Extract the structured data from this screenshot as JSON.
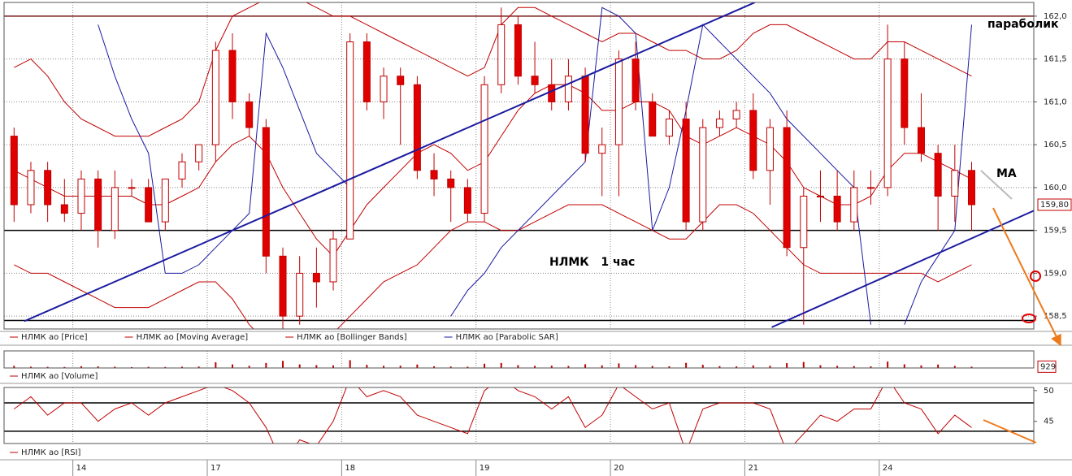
{
  "chart_data": [
    {
      "type": "candlestick",
      "name": "НЛМК ао [Price]",
      "color": "#c00000",
      "up_color": "#ffffff",
      "down_color": "#e00000",
      "categories": [
        null,
        null,
        null,
        null,
        "14",
        null,
        null,
        null,
        null,
        null,
        null,
        null,
        "17",
        null,
        null,
        null,
        null,
        null,
        null,
        null,
        "18",
        null,
        null,
        null,
        null,
        null,
        null,
        null,
        "19",
        null,
        null,
        null,
        null,
        null,
        null,
        null,
        "20",
        null,
        null,
        null,
        null,
        null,
        null,
        null,
        "21",
        null,
        null,
        null,
        null,
        null,
        null,
        null,
        "24",
        null,
        null,
        null,
        null,
        null
      ],
      "open": [
        160.6,
        159.8,
        160.2,
        159.8,
        159.7,
        160.1,
        159.5,
        160.0,
        160.0,
        159.6,
        160.1,
        160.3,
        160.5,
        161.6,
        161.0,
        160.7,
        159.2,
        158.5,
        159.0,
        158.9,
        159.4,
        161.7,
        161.0,
        161.3,
        161.2,
        160.2,
        160.1,
        160.0,
        159.7,
        161.2,
        161.9,
        161.3,
        161.2,
        161.0,
        161.3,
        160.4,
        160.5,
        161.5,
        161.0,
        160.6,
        160.8,
        159.6,
        160.7,
        160.8,
        160.9,
        160.2,
        160.7,
        159.3,
        159.9,
        159.9,
        159.6,
        160.0,
        160.0,
        161.5,
        160.7,
        160.4,
        159.9,
        160.2
      ],
      "high": [
        160.7,
        160.3,
        160.3,
        160.1,
        160.2,
        160.2,
        160.2,
        160.1,
        160.1,
        160.1,
        160.4,
        160.5,
        161.7,
        161.8,
        161.1,
        160.8,
        159.3,
        159.2,
        159.3,
        159.5,
        161.8,
        161.8,
        161.4,
        161.4,
        161.3,
        160.4,
        160.2,
        160.1,
        161.3,
        162.1,
        162.0,
        161.7,
        161.5,
        161.5,
        161.4,
        160.7,
        161.6,
        161.7,
        161.1,
        160.9,
        161.0,
        160.8,
        160.9,
        161.0,
        161.1,
        160.8,
        160.9,
        160.0,
        160.2,
        160.2,
        160.2,
        160.2,
        161.9,
        161.7,
        161.1,
        160.5,
        160.5,
        160.3
      ],
      "low": [
        159.6,
        159.7,
        159.6,
        159.6,
        159.5,
        159.3,
        159.4,
        159.9,
        159.6,
        159.5,
        160.0,
        160.2,
        160.3,
        160.8,
        160.6,
        159.0,
        158.3,
        158.4,
        158.6,
        158.8,
        159.4,
        160.9,
        160.8,
        160.5,
        160.1,
        159.9,
        159.6,
        159.6,
        159.6,
        161.1,
        161.2,
        161.1,
        160.9,
        160.9,
        160.3,
        159.9,
        159.9,
        160.9,
        160.6,
        160.5,
        159.5,
        159.5,
        160.6,
        160.7,
        160.1,
        159.8,
        159.2,
        158.4,
        159.6,
        159.5,
        159.5,
        159.8,
        159.9,
        160.5,
        160.3,
        159.5,
        159.6,
        159.5
      ],
      "close": [
        159.8,
        160.2,
        159.8,
        159.7,
        160.1,
        159.5,
        160.0,
        160.0,
        159.6,
        160.1,
        160.3,
        160.5,
        161.6,
        161.0,
        160.7,
        159.2,
        158.5,
        159.0,
        158.9,
        159.4,
        161.7,
        161.0,
        161.3,
        161.2,
        160.2,
        160.1,
        160.0,
        159.7,
        161.2,
        161.9,
        161.3,
        161.2,
        161.0,
        161.3,
        160.4,
        160.5,
        161.5,
        161.0,
        160.6,
        160.8,
        159.6,
        160.7,
        160.8,
        160.9,
        160.2,
        160.7,
        159.3,
        159.9,
        159.9,
        159.6,
        160.0,
        160.0,
        161.5,
        160.7,
        160.4,
        159.9,
        160.2,
        159.8
      ],
      "series": [
        {
          "name": "НЛМК ао [Moving Average]",
          "color": "#c00000",
          "values": [
            160.2,
            160.1,
            160.0,
            159.9,
            159.9,
            159.9,
            159.9,
            159.9,
            159.8,
            159.8,
            159.9,
            160.0,
            160.3,
            160.5,
            160.6,
            160.4,
            160.0,
            159.7,
            159.4,
            159.2,
            159.5,
            159.8,
            160.0,
            160.2,
            160.4,
            160.5,
            160.4,
            160.2,
            160.3,
            160.6,
            160.9,
            161.1,
            161.2,
            161.2,
            161.1,
            160.9,
            160.9,
            161.0,
            161.0,
            160.9,
            160.6,
            160.5,
            160.6,
            160.7,
            160.6,
            160.5,
            160.3,
            160.0,
            159.9,
            159.8,
            159.8,
            159.9,
            160.2,
            160.4,
            160.4,
            160.3,
            160.2,
            160.1
          ]
        },
        {
          "name": "НЛМК ао [Bollinger Bands]",
          "color": "#c00000",
          "upper": [
            161.4,
            161.5,
            161.3,
            161.0,
            160.8,
            160.7,
            160.6,
            160.6,
            160.6,
            160.7,
            160.8,
            161.0,
            161.6,
            162.0,
            162.1,
            162.2,
            162.3,
            162.2,
            162.1,
            162.0,
            162.0,
            161.9,
            161.8,
            161.7,
            161.6,
            161.5,
            161.4,
            161.3,
            161.4,
            161.9,
            162.1,
            162.1,
            162.0,
            161.9,
            161.8,
            161.7,
            161.8,
            161.8,
            161.7,
            161.6,
            161.6,
            161.5,
            161.5,
            161.6,
            161.8,
            161.9,
            161.9,
            161.8,
            161.7,
            161.6,
            161.5,
            161.5,
            161.7,
            161.7,
            161.6,
            161.5,
            161.4,
            161.3
          ],
          "lower": [
            159.1,
            159.0,
            159.0,
            158.9,
            158.8,
            158.7,
            158.6,
            158.6,
            158.6,
            158.7,
            158.8,
            158.9,
            158.9,
            158.7,
            158.4,
            158.2,
            158.0,
            158.0,
            158.1,
            158.3,
            158.5,
            158.7,
            158.9,
            159.0,
            159.1,
            159.3,
            159.5,
            159.6,
            159.6,
            159.5,
            159.5,
            159.6,
            159.7,
            159.8,
            159.8,
            159.8,
            159.7,
            159.6,
            159.5,
            159.4,
            159.4,
            159.6,
            159.8,
            159.8,
            159.7,
            159.5,
            159.3,
            159.1,
            159.0,
            159.0,
            159.0,
            159.0,
            159.0,
            159.0,
            159.0,
            158.9,
            159.0,
            159.1
          ]
        },
        {
          "name": "НЛМК ао [Parabolic SAR]",
          "color": "#1a1aa0",
          "values": [
            null,
            null,
            null,
            null,
            null,
            161.9,
            161.3,
            160.8,
            160.4,
            159.0,
            159.0,
            159.1,
            159.3,
            159.5,
            159.7,
            161.8,
            161.4,
            160.9,
            160.4,
            160.2,
            160.0,
            null,
            null,
            null,
            null,
            null,
            158.5,
            158.8,
            159.0,
            159.3,
            159.5,
            159.7,
            159.9,
            160.1,
            160.3,
            162.1,
            162.0,
            161.8,
            159.5,
            160.0,
            160.9,
            161.9,
            161.7,
            161.5,
            161.3,
            161.1,
            160.8,
            160.6,
            160.4,
            160.2,
            160.0,
            158.4,
            null,
            158.4,
            158.9,
            159.2,
            159.5,
            161.9
          ]
        }
      ],
      "ylim": [
        158.35,
        162.16
      ],
      "yticks": [
        {
          "value": 158.5,
          "label": "158,5"
        },
        {
          "value": 159.0,
          "label": "159,0"
        },
        {
          "value": 159.5,
          "label": "159,5"
        },
        {
          "value": 160.0,
          "label": "160,0"
        },
        {
          "value": 160.5,
          "label": "160,5"
        },
        {
          "value": 161.0,
          "label": "161,0"
        },
        {
          "value": 161.5,
          "label": "161,5"
        },
        {
          "value": 162.0,
          "label": "162,0"
        }
      ],
      "grid": true,
      "marker": {
        "value": 159.8,
        "label": "159,80"
      },
      "hlines": [
        {
          "value": 162.0,
          "color": "#7a1a1a"
        },
        {
          "value": 159.5,
          "color": "#000000"
        },
        {
          "value": 158.45,
          "color": "#000000"
        }
      ],
      "trend_lines": [
        {
          "color": "#1a1aa0",
          "x": [
            0.6,
            44.1
          ],
          "y": [
            158.44,
            162.16
          ]
        },
        {
          "color": "#1a1aa0",
          "x": [
            45.1,
            60.7
          ],
          "y": [
            158.37,
            159.73
          ]
        }
      ],
      "annotations": [
        "параболик",
        "МА",
        "НЛМК   1 час"
      ]
    },
    {
      "type": "bar",
      "name": "НЛМК ао [Volume]",
      "color": "#c00000",
      "values": [
        1500,
        900,
        800,
        700,
        1200,
        1100,
        900,
        600,
        800,
        700,
        900,
        1000,
        4000,
        2500,
        1500,
        3500,
        5000,
        2500,
        2000,
        1800,
        5500,
        2200,
        1500,
        1600,
        2400,
        1200,
        1000,
        900,
        3000,
        3500,
        2000,
        1500,
        1600,
        1400,
        2600,
        1800,
        3200,
        2000,
        1400,
        1200,
        3600,
        2200,
        1300,
        1100,
        1800,
        1500,
        3400,
        4200,
        1900,
        1500,
        1300,
        1100,
        4500,
        2600,
        1800,
        2400,
        1500,
        929
      ],
      "ylim": [
        0,
        12000
      ],
      "marker": 929
    },
    {
      "type": "line",
      "name": "НЛМК ао [RSI]",
      "color": "#c00000",
      "values": [
        47,
        49,
        46,
        48,
        48,
        45,
        47,
        48,
        46,
        48,
        49,
        50,
        51,
        50,
        48,
        44,
        38,
        42,
        41,
        45,
        52,
        49,
        50,
        49,
        46,
        45,
        44,
        43,
        50,
        52,
        50,
        49,
        47,
        49,
        44,
        46,
        51,
        49,
        47,
        48,
        40,
        47,
        48,
        48,
        48,
        47,
        40,
        43,
        46,
        45,
        47,
        47,
        52,
        48,
        47,
        43,
        46,
        44
      ],
      "ylim": [
        41.4,
        50.5
      ],
      "yticks": [
        45,
        50
      ],
      "hlines": [
        {
          "value": 48.0,
          "color": "#000000"
        },
        {
          "value": 43.4,
          "color": "#000000"
        }
      ]
    }
  ]
}
